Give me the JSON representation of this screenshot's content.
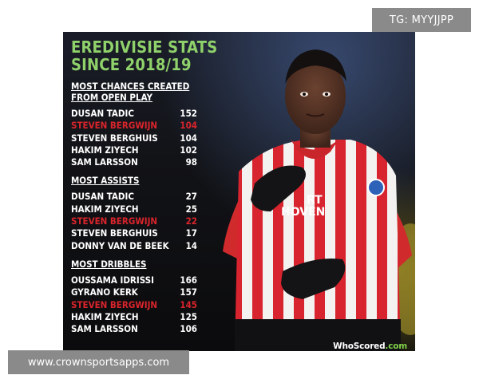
{
  "overlays": {
    "tg_badge": "TG: MYYJJPP",
    "site_banner": "www.crownsportsapps.com"
  },
  "poster": {
    "title_line1": "EREDIVISIE STATS",
    "title_line2": "SINCE 2018/19",
    "jersey_text_line1": "RT",
    "jersey_text_line2": "HOVEN",
    "logo_text": "WhoScored",
    "logo_suffix": ".com",
    "colors": {
      "title_green": "#8fd16a",
      "highlight_red": "#d9242b",
      "jersey_red": "#d8242e",
      "background": "#0f0f12"
    },
    "sections": [
      {
        "heading_line1": "MOST CHANCES CREATED",
        "heading_line2": "FROM OPEN PLAY",
        "rows": [
          {
            "name": "DUSAN TADIC",
            "value": "152",
            "highlight": false
          },
          {
            "name": "STEVEN BERGWIJN",
            "value": "104",
            "highlight": true
          },
          {
            "name": "STEVEN BERGHUIS",
            "value": "104",
            "highlight": false
          },
          {
            "name": "HAKIM ZIYECH",
            "value": "102",
            "highlight": false
          },
          {
            "name": "SAM LARSSON",
            "value": "98",
            "highlight": false
          }
        ]
      },
      {
        "heading_line1": "MOST ASSISTS",
        "heading_line2": "",
        "rows": [
          {
            "name": "DUSAN TADIC",
            "value": "27",
            "highlight": false
          },
          {
            "name": "HAKIM ZIYECH",
            "value": "25",
            "highlight": false
          },
          {
            "name": "STEVEN BERGWIJN",
            "value": "22",
            "highlight": true
          },
          {
            "name": "STEVEN BERGHUIS",
            "value": "17",
            "highlight": false
          },
          {
            "name": "DONNY VAN DE BEEK",
            "value": "14",
            "highlight": false
          }
        ]
      },
      {
        "heading_line1": "MOST DRIBBLES",
        "heading_line2": "",
        "rows": [
          {
            "name": "OUSSAMA IDRISSI",
            "value": "166",
            "highlight": false
          },
          {
            "name": "GYRANO KERK",
            "value": "157",
            "highlight": false
          },
          {
            "name": "STEVEN BERGWIJN",
            "value": "145",
            "highlight": true
          },
          {
            "name": "HAKIM ZIYECH",
            "value": "125",
            "highlight": false
          },
          {
            "name": "SAM LARSSON",
            "value": "106",
            "highlight": false
          }
        ]
      }
    ]
  }
}
